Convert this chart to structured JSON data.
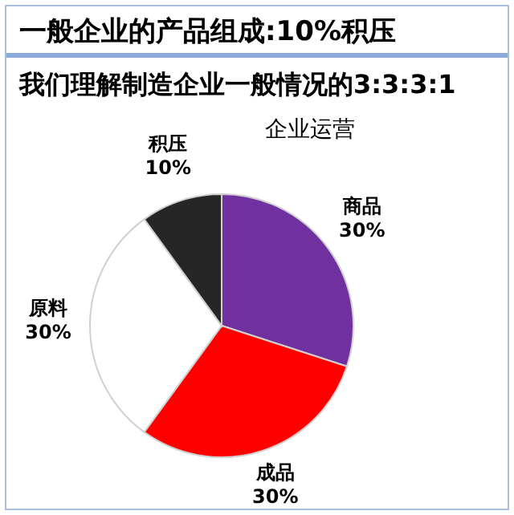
{
  "chart_data": {
    "type": "pie",
    "title": "一般企业的产品组成:10%积压",
    "subtitle": "我们理解制造企业一般情况的3:3:3:1",
    "annotations": [
      "企业运营"
    ],
    "categories": [
      "商品",
      "成品",
      "原料",
      "积压"
    ],
    "values": [
      30,
      30,
      30,
      10
    ],
    "value_labels": [
      "30%",
      "30%",
      "30%",
      "10%"
    ],
    "colors": [
      "#7030a0",
      "#ff0000",
      "#ffffff",
      "#262626"
    ],
    "legend": false
  }
}
